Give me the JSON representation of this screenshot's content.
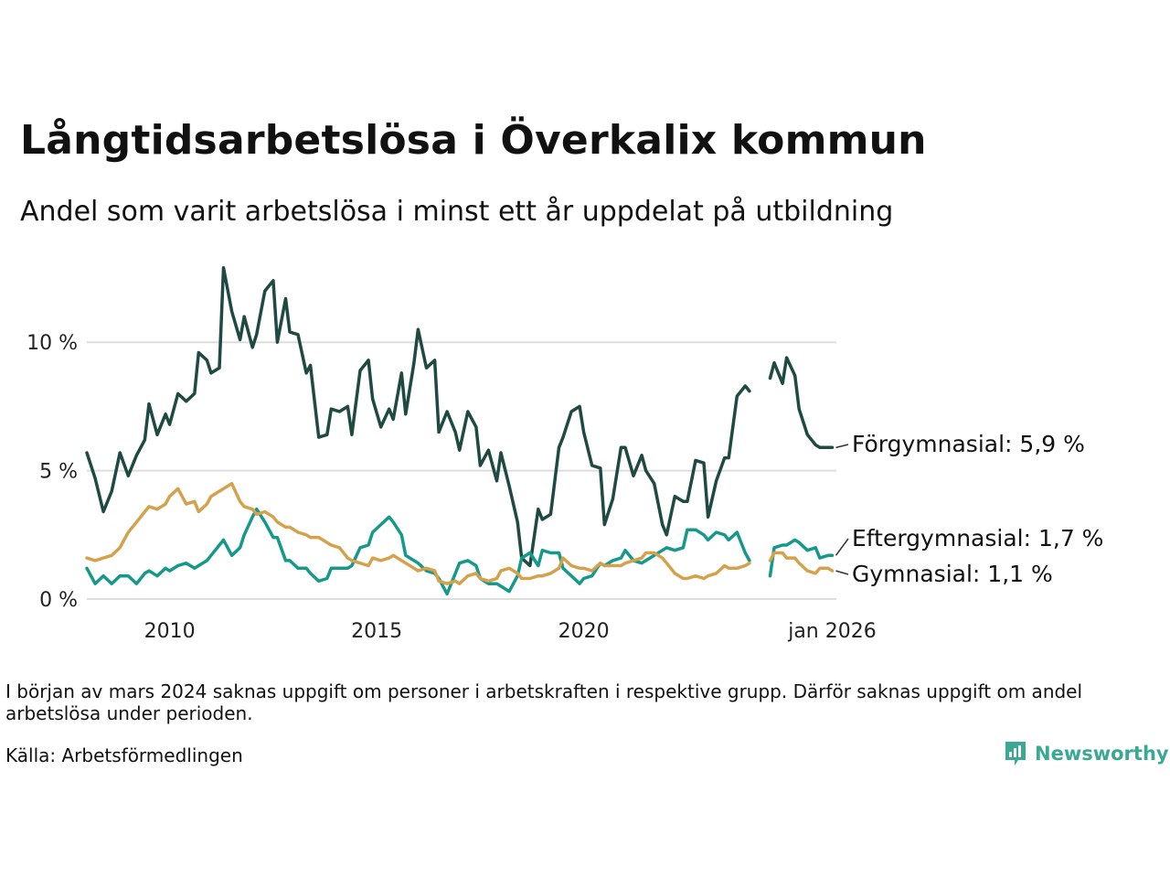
{
  "title": "Långtidsarbetslösa i Överkalix kommun",
  "subtitle": "Andel som varit arbetslösa i minst ett år uppdelat på utbildning",
  "note": "I början av mars 2024 saknas uppgift om personer i arbetskraften i respektive grupp. Därför saknas uppgift om andel arbetslösa under perioden.",
  "source": "Källa: Arbetsförmedlingen",
  "brand": "Newsworthy",
  "colors": {
    "forgymnasial": "#1f4a42",
    "eftergymnasial": "#16998a",
    "gymnasial": "#d4a24c",
    "grid": "#dddddd"
  },
  "chart_data": {
    "type": "line",
    "title": "Långtidsarbetslösa i Överkalix kommun",
    "subtitle": "Andel som varit arbetslösa i minst ett år uppdelat på utbildning",
    "xlabel": "",
    "ylabel": "",
    "unit": "%",
    "xlim": [
      2008.0,
      2026.1
    ],
    "ylim": [
      0,
      13
    ],
    "grid": true,
    "y_ticks": [
      {
        "value": 0,
        "label": "0 %"
      },
      {
        "value": 5,
        "label": "5 %"
      },
      {
        "value": 10,
        "label": "10 %"
      }
    ],
    "x_ticks": [
      {
        "value": 2010,
        "label": "2010"
      },
      {
        "value": 2015,
        "label": "2015"
      },
      {
        "value": 2020,
        "label": "2020"
      },
      {
        "value": 2026,
        "label": "jan 2026"
      }
    ],
    "gap": {
      "from": 2024.1,
      "to": 2024.4
    },
    "series": [
      {
        "key": "forgymnasial",
        "name": "Förgymnasial",
        "label": "Förgymnasial: 5,9 %",
        "x": [
          2008.0,
          2008.2,
          2008.4,
          2008.6,
          2008.8,
          2009.0,
          2009.2,
          2009.4,
          2009.5,
          2009.7,
          2009.9,
          2010.0,
          2010.2,
          2010.4,
          2010.6,
          2010.7,
          2010.9,
          2011.0,
          2011.2,
          2011.3,
          2011.5,
          2011.7,
          2011.8,
          2012.0,
          2012.1,
          2012.3,
          2012.5,
          2012.6,
          2012.8,
          2012.9,
          2013.1,
          2013.3,
          2013.4,
          2013.6,
          2013.8,
          2013.9,
          2014.1,
          2014.3,
          2014.4,
          2014.6,
          2014.8,
          2014.9,
          2015.1,
          2015.3,
          2015.4,
          2015.6,
          2015.7,
          2015.9,
          2016.0,
          2016.2,
          2016.4,
          2016.5,
          2016.7,
          2016.9,
          2017.0,
          2017.2,
          2017.4,
          2017.5,
          2017.7,
          2017.9,
          2018.0,
          2018.2,
          2018.4,
          2018.5,
          2018.7,
          2018.9,
          2019.0,
          2019.2,
          2019.4,
          2019.5,
          2019.7,
          2019.9,
          2020.0,
          2020.2,
          2020.4,
          2020.5,
          2020.7,
          2020.9,
          2021.0,
          2021.2,
          2021.4,
          2021.5,
          2021.7,
          2021.9,
          2022.0,
          2022.2,
          2022.4,
          2022.5,
          2022.7,
          2022.9,
          2023.0,
          2023.2,
          2023.4,
          2023.5,
          2023.7,
          2023.9,
          2024.0,
          2024.5,
          2024.6,
          2024.8,
          2024.9,
          2025.1,
          2025.2,
          2025.4,
          2025.6,
          2025.7,
          2025.9,
          2026.0
        ],
        "values": [
          5.7,
          4.7,
          3.4,
          4.2,
          5.7,
          4.8,
          5.6,
          6.2,
          7.6,
          6.4,
          7.2,
          6.8,
          8.0,
          7.7,
          8.0,
          9.6,
          9.3,
          8.8,
          9.0,
          12.9,
          11.2,
          10.1,
          11.0,
          9.8,
          10.3,
          12.0,
          12.4,
          10.0,
          11.7,
          10.4,
          10.3,
          8.8,
          9.1,
          6.3,
          6.4,
          7.4,
          7.3,
          7.5,
          6.4,
          8.9,
          9.3,
          7.8,
          6.7,
          7.4,
          7.0,
          8.8,
          7.2,
          9.2,
          10.5,
          9.0,
          9.3,
          6.5,
          7.3,
          6.5,
          5.8,
          7.3,
          6.7,
          5.2,
          5.8,
          4.6,
          5.7,
          4.4,
          3.0,
          1.6,
          1.3,
          3.5,
          3.1,
          3.3,
          5.9,
          6.3,
          7.3,
          7.5,
          6.5,
          5.2,
          5.1,
          2.9,
          3.9,
          5.9,
          5.9,
          4.8,
          5.6,
          5.0,
          4.5,
          2.9,
          2.5,
          4.0,
          3.8,
          3.8,
          5.4,
          5.3,
          3.2,
          4.6,
          5.5,
          5.5,
          7.9,
          8.3,
          8.1,
          8.6,
          9.2,
          8.4,
          9.4,
          8.7,
          7.4,
          6.4,
          6.0,
          5.9,
          5.9,
          5.9
        ]
      },
      {
        "key": "eftergymnasial",
        "name": "Eftergymnasial",
        "label": "Eftergymnasial: 1,7 %",
        "x": [
          2008.0,
          2008.2,
          2008.4,
          2008.6,
          2008.8,
          2009.0,
          2009.2,
          2009.4,
          2009.5,
          2009.7,
          2009.9,
          2010.0,
          2010.2,
          2010.4,
          2010.6,
          2010.7,
          2010.9,
          2011.0,
          2011.2,
          2011.3,
          2011.5,
          2011.7,
          2011.8,
          2012.0,
          2012.1,
          2012.3,
          2012.5,
          2012.6,
          2012.8,
          2012.9,
          2013.1,
          2013.3,
          2013.4,
          2013.6,
          2013.8,
          2013.9,
          2014.1,
          2014.3,
          2014.4,
          2014.6,
          2014.8,
          2014.9,
          2015.1,
          2015.3,
          2015.4,
          2015.6,
          2015.7,
          2015.9,
          2016.0,
          2016.2,
          2016.4,
          2016.5,
          2016.7,
          2016.9,
          2017.0,
          2017.2,
          2017.4,
          2017.5,
          2017.7,
          2017.9,
          2018.0,
          2018.2,
          2018.4,
          2018.5,
          2018.7,
          2018.9,
          2019.0,
          2019.2,
          2019.4,
          2019.5,
          2019.7,
          2019.9,
          2020.0,
          2020.2,
          2020.4,
          2020.5,
          2020.7,
          2020.9,
          2021.0,
          2021.2,
          2021.4,
          2021.5,
          2021.7,
          2021.9,
          2022.0,
          2022.2,
          2022.4,
          2022.5,
          2022.7,
          2022.9,
          2023.0,
          2023.2,
          2023.4,
          2023.5,
          2023.7,
          2023.9,
          2024.0,
          2024.5,
          2024.6,
          2024.8,
          2024.9,
          2025.1,
          2025.2,
          2025.4,
          2025.6,
          2025.7,
          2025.9,
          2026.0
        ],
        "values": [
          1.2,
          0.6,
          0.9,
          0.6,
          0.9,
          0.9,
          0.6,
          1.0,
          1.1,
          0.9,
          1.2,
          1.1,
          1.3,
          1.4,
          1.2,
          1.3,
          1.5,
          1.7,
          2.1,
          2.3,
          1.7,
          2.0,
          2.5,
          3.2,
          3.5,
          3.0,
          2.4,
          2.4,
          1.5,
          1.5,
          1.2,
          1.2,
          1.0,
          0.7,
          0.8,
          1.2,
          1.2,
          1.2,
          1.3,
          2.0,
          2.1,
          2.6,
          2.9,
          3.2,
          3.0,
          2.5,
          1.7,
          1.5,
          1.4,
          1.1,
          1.0,
          0.8,
          0.2,
          1.0,
          1.4,
          1.5,
          1.3,
          0.8,
          0.6,
          0.6,
          0.5,
          0.3,
          0.9,
          1.6,
          1.8,
          1.3,
          1.9,
          1.8,
          1.8,
          1.2,
          0.9,
          0.6,
          0.8,
          0.9,
          1.4,
          1.3,
          1.5,
          1.6,
          1.9,
          1.5,
          1.4,
          1.5,
          1.7,
          1.9,
          2.0,
          1.9,
          2.0,
          2.7,
          2.7,
          2.5,
          2.3,
          2.6,
          2.5,
          2.3,
          2.6,
          1.8,
          1.5,
          0.9,
          2.0,
          2.1,
          2.1,
          2.3,
          2.2,
          1.9,
          2.0,
          1.6,
          1.7,
          1.7
        ]
      },
      {
        "key": "gymnasial",
        "name": "Gymnasial",
        "label": "Gymnasial: 1,1 %",
        "x": [
          2008.0,
          2008.2,
          2008.4,
          2008.6,
          2008.8,
          2009.0,
          2009.2,
          2009.4,
          2009.5,
          2009.7,
          2009.9,
          2010.0,
          2010.2,
          2010.4,
          2010.6,
          2010.7,
          2010.9,
          2011.0,
          2011.2,
          2011.3,
          2011.5,
          2011.7,
          2011.8,
          2012.0,
          2012.1,
          2012.3,
          2012.5,
          2012.6,
          2012.8,
          2012.9,
          2013.1,
          2013.3,
          2013.4,
          2013.6,
          2013.8,
          2013.9,
          2014.1,
          2014.3,
          2014.4,
          2014.6,
          2014.8,
          2014.9,
          2015.1,
          2015.3,
          2015.4,
          2015.6,
          2015.7,
          2015.9,
          2016.0,
          2016.2,
          2016.4,
          2016.5,
          2016.7,
          2016.9,
          2017.0,
          2017.2,
          2017.4,
          2017.5,
          2017.7,
          2017.9,
          2018.0,
          2018.2,
          2018.4,
          2018.5,
          2018.7,
          2018.9,
          2019.0,
          2019.2,
          2019.4,
          2019.5,
          2019.7,
          2019.9,
          2020.0,
          2020.2,
          2020.4,
          2020.5,
          2020.7,
          2020.9,
          2021.0,
          2021.2,
          2021.4,
          2021.5,
          2021.7,
          2021.9,
          2022.0,
          2022.2,
          2022.4,
          2022.5,
          2022.7,
          2022.9,
          2023.0,
          2023.2,
          2023.4,
          2023.5,
          2023.7,
          2023.9,
          2024.0,
          2024.5,
          2024.6,
          2024.8,
          2024.9,
          2025.1,
          2025.2,
          2025.4,
          2025.6,
          2025.7,
          2025.9,
          2026.0
        ],
        "values": [
          1.6,
          1.5,
          1.6,
          1.7,
          2.0,
          2.6,
          3.0,
          3.4,
          3.6,
          3.5,
          3.7,
          4.0,
          4.3,
          3.7,
          3.8,
          3.4,
          3.7,
          4.0,
          4.2,
          4.3,
          4.5,
          3.8,
          3.6,
          3.5,
          3.3,
          3.4,
          3.2,
          3.0,
          2.8,
          2.8,
          2.6,
          2.5,
          2.4,
          2.4,
          2.2,
          2.1,
          2.0,
          1.6,
          1.5,
          1.4,
          1.3,
          1.6,
          1.5,
          1.6,
          1.7,
          1.5,
          1.4,
          1.2,
          1.1,
          1.2,
          1.1,
          0.7,
          0.6,
          0.7,
          0.6,
          0.9,
          1.0,
          0.8,
          0.7,
          0.8,
          1.1,
          1.2,
          1.0,
          0.8,
          0.8,
          0.9,
          0.9,
          1.0,
          1.2,
          1.6,
          1.3,
          1.2,
          1.2,
          1.1,
          1.4,
          1.3,
          1.3,
          1.3,
          1.4,
          1.5,
          1.6,
          1.8,
          1.8,
          1.6,
          1.4,
          1.0,
          0.8,
          0.8,
          0.9,
          0.8,
          0.9,
          1.0,
          1.3,
          1.2,
          1.2,
          1.3,
          1.4,
          1.5,
          1.8,
          1.8,
          1.6,
          1.6,
          1.4,
          1.1,
          1.0,
          1.2,
          1.2,
          1.1
        ]
      }
    ]
  }
}
